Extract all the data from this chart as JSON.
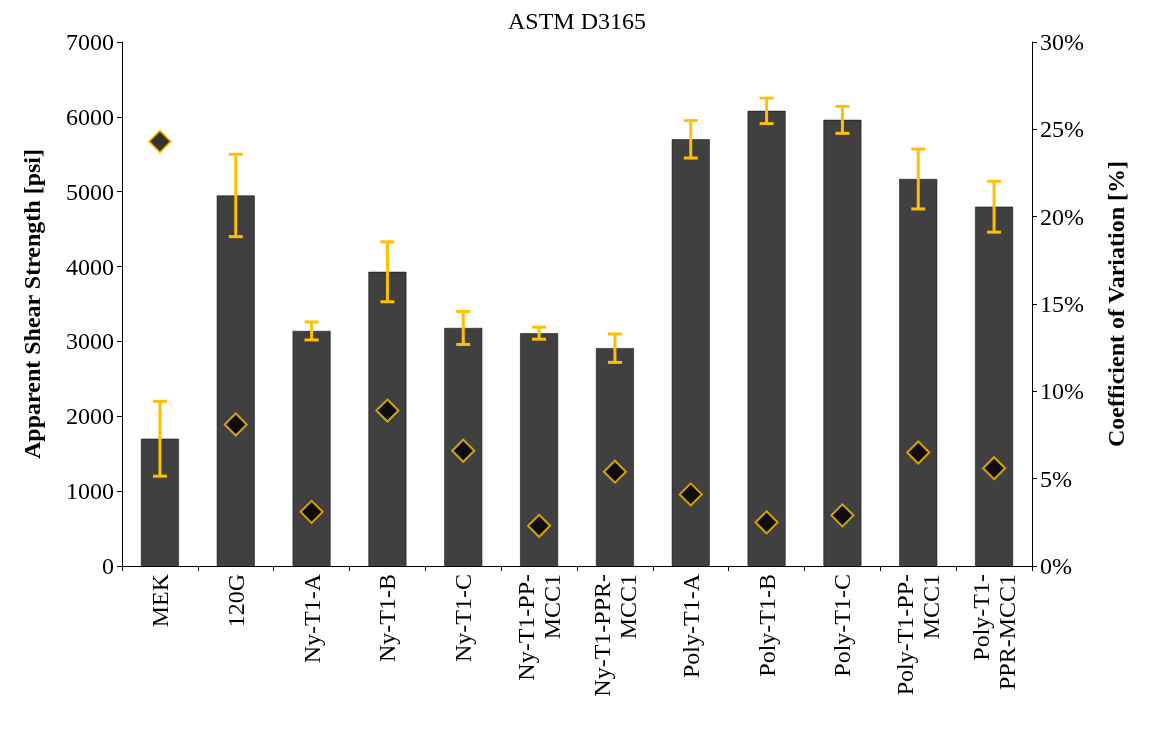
{
  "chart_data": {
    "type": "bar",
    "title": "ASTM D3165",
    "ylabel": "Apparent Shear Strength [psi]",
    "y2label": "Coefficient of Variation [%]",
    "categories": [
      "MEK",
      "120G",
      "Ny-T1-A",
      "Ny-T1-B",
      "Ny-T1-C",
      "Ny-T1-PP-MCC1",
      "Ny-T1-PPR-MCC1",
      "Poly-T1-A",
      "Poly-T1-B",
      "Poly-T1-C",
      "Poly-T1-PP-MCC1",
      "Poly-T1-PPR-MCC1"
    ],
    "series": [
      {
        "color": "#404040",
        "values": [
          1700,
          4950,
          3140,
          3930,
          3180,
          3110,
          2910,
          5700,
          6080,
          5960,
          5170,
          4800
        ],
        "errors": [
          500,
          550,
          120,
          400,
          220,
          80,
          190,
          250,
          170,
          180,
          400,
          340
        ]
      },
      {
        "type": "scatter",
        "axis": "y2",
        "color": "#000000",
        "marker": "diamond",
        "values": [
          24.3,
          8.1,
          3.1,
          8.9,
          6.6,
          2.3,
          5.4,
          4.1,
          2.5,
          2.9,
          6.5,
          5.6
        ]
      }
    ],
    "ylim": [
      0,
      7000
    ],
    "yticks": [
      0,
      1000,
      2000,
      3000,
      4000,
      5000,
      6000,
      7000
    ],
    "y2lim": [
      0,
      30
    ],
    "y2ticks": [
      {
        "value": 0,
        "label": "0%"
      },
      {
        "value": 5,
        "label": "5%"
      },
      {
        "value": 10,
        "label": "10%"
      },
      {
        "value": 15,
        "label": "15%"
      },
      {
        "value": 20,
        "label": "20%"
      },
      {
        "value": 25,
        "label": "25%"
      },
      {
        "value": 30,
        "label": "30%"
      }
    ],
    "grid": false
  }
}
